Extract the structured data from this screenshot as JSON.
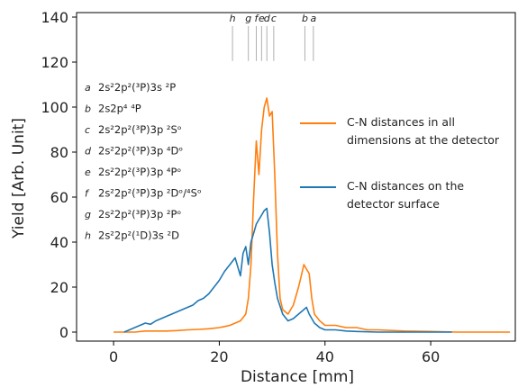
{
  "chart_data": {
    "type": "line",
    "xlabel": "Distance [mm]",
    "ylabel": "Yield [Arb. Unit]",
    "xlim": [
      -7,
      76
    ],
    "ylim": [
      -4,
      142
    ],
    "xticks": [
      0,
      20,
      40,
      60
    ],
    "yticks": [
      0,
      20,
      40,
      60,
      80,
      100,
      120,
      140
    ],
    "grid": false,
    "legend_placement": "right",
    "colors": {
      "orange": "#ff7f0e",
      "blue": "#1f77b4",
      "marker_line": "#b0b0b0"
    },
    "series": [
      {
        "name": "C-N distances in all dimensions at the detector",
        "color": "#ff7f0e",
        "points": [
          [
            0,
            0
          ],
          [
            2,
            0
          ],
          [
            4,
            0
          ],
          [
            6,
            0.5
          ],
          [
            8,
            0.5
          ],
          [
            10,
            0.5
          ],
          [
            12,
            0.7
          ],
          [
            14,
            1
          ],
          [
            16,
            1.2
          ],
          [
            18,
            1.5
          ],
          [
            20,
            2
          ],
          [
            21,
            2.5
          ],
          [
            22,
            3
          ],
          [
            23,
            4
          ],
          [
            24,
            5
          ],
          [
            25,
            8
          ],
          [
            25.5,
            15
          ],
          [
            26,
            30
          ],
          [
            26.5,
            60
          ],
          [
            27,
            85
          ],
          [
            27.5,
            70
          ],
          [
            28,
            90
          ],
          [
            28.5,
            100
          ],
          [
            29,
            104
          ],
          [
            29.5,
            96
          ],
          [
            30,
            98
          ],
          [
            30.5,
            70
          ],
          [
            31,
            35
          ],
          [
            31.5,
            15
          ],
          [
            32,
            10
          ],
          [
            33,
            8
          ],
          [
            34,
            12
          ],
          [
            35,
            20
          ],
          [
            35.5,
            25
          ],
          [
            36,
            30
          ],
          [
            36.5,
            28
          ],
          [
            37,
            26
          ],
          [
            37.5,
            15
          ],
          [
            38,
            8
          ],
          [
            39,
            5
          ],
          [
            40,
            3
          ],
          [
            42,
            3
          ],
          [
            44,
            2
          ],
          [
            46,
            2
          ],
          [
            48,
            1
          ],
          [
            50,
            1
          ],
          [
            55,
            0.5
          ],
          [
            60,
            0.3
          ],
          [
            65,
            0
          ],
          [
            70,
            0
          ],
          [
            75,
            0
          ]
        ]
      },
      {
        "name": "C-N distances on the detector surface",
        "color": "#1f77b4",
        "points": [
          [
            2,
            0
          ],
          [
            3,
            1
          ],
          [
            4,
            2
          ],
          [
            5,
            3
          ],
          [
            6,
            4
          ],
          [
            7,
            3.5
          ],
          [
            8,
            5
          ],
          [
            9,
            6
          ],
          [
            10,
            7
          ],
          [
            11,
            8
          ],
          [
            12,
            9
          ],
          [
            13,
            10
          ],
          [
            14,
            11
          ],
          [
            15,
            12
          ],
          [
            16,
            14
          ],
          [
            17,
            15
          ],
          [
            18,
            17
          ],
          [
            19,
            20
          ],
          [
            20,
            23
          ],
          [
            21,
            27
          ],
          [
            22,
            30
          ],
          [
            23,
            33
          ],
          [
            24,
            25
          ],
          [
            24.5,
            35
          ],
          [
            25,
            38
          ],
          [
            25.5,
            30
          ],
          [
            26,
            40
          ],
          [
            26.5,
            44
          ],
          [
            27,
            48
          ],
          [
            27.5,
            50
          ],
          [
            28,
            52
          ],
          [
            28.5,
            54
          ],
          [
            29,
            55
          ],
          [
            29.5,
            44
          ],
          [
            30,
            30
          ],
          [
            30.5,
            22
          ],
          [
            31,
            15
          ],
          [
            32,
            8
          ],
          [
            33,
            5
          ],
          [
            34,
            6
          ],
          [
            35,
            8
          ],
          [
            36,
            10
          ],
          [
            36.5,
            11
          ],
          [
            37,
            8
          ],
          [
            38,
            4
          ],
          [
            39,
            2
          ],
          [
            40,
            1
          ],
          [
            42,
            1
          ],
          [
            44,
            0.5
          ],
          [
            46,
            0.3
          ],
          [
            50,
            0
          ],
          [
            55,
            0
          ],
          [
            60,
            0
          ],
          [
            64,
            0
          ]
        ]
      }
    ],
    "legend": [
      {
        "line1": "C-N distances in all",
        "line2": "dimensions at the detector",
        "color": "#ff7f0e"
      },
      {
        "line1": "C-N distances on the",
        "line2": "detector surface",
        "color": "#1f77b4"
      }
    ],
    "markers": [
      {
        "label": "h",
        "x": 22.5
      },
      {
        "label": "g",
        "x": 25.5
      },
      {
        "label": "f",
        "x": 27
      },
      {
        "label": "e",
        "x": 28
      },
      {
        "label": "d",
        "x": 29
      },
      {
        "label": "c",
        "x": 30.3
      },
      {
        "label": "b",
        "x": 36.2
      },
      {
        "label": "a",
        "x": 37.8
      }
    ],
    "states": [
      {
        "letter": "a",
        "label": "2s²2p²(³P)3s ²P"
      },
      {
        "letter": "b",
        "label": "2s2p⁴ ⁴P"
      },
      {
        "letter": "c",
        "label": "2s²2p²(³P)3p ²Sᵒ"
      },
      {
        "letter": "d",
        "label": "2s²2p²(³P)3p ⁴Dᵒ"
      },
      {
        "letter": "e",
        "label": "2s²2p²(³P)3p ⁴Pᵒ"
      },
      {
        "letter": "f",
        "label": "2s²2p²(³P)3p ²Dᵒ/⁴Sᵒ"
      },
      {
        "letter": "g",
        "label": "2s²2p²(³P)3p ²Pᵒ"
      },
      {
        "letter": "h",
        "label": "2s²2p²(¹D)3s ²D"
      }
    ]
  }
}
